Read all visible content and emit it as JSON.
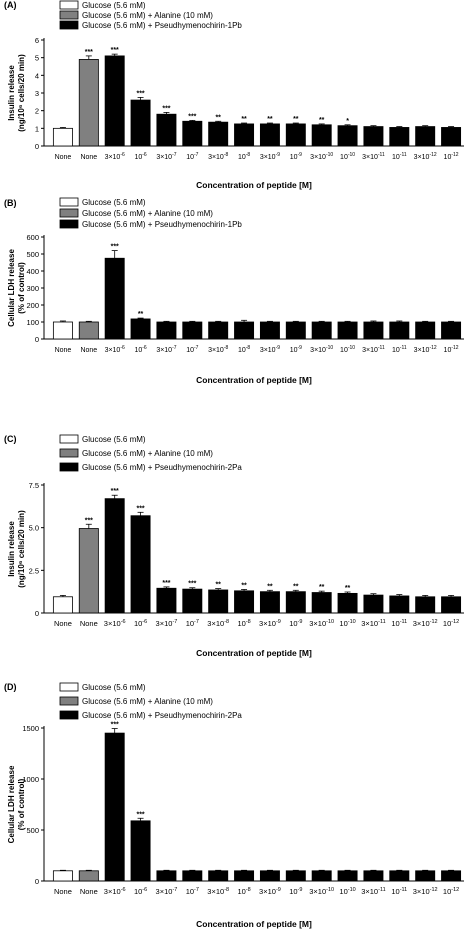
{
  "chart_data": [
    {
      "panel": "(A)",
      "type": "bar",
      "legend": [
        "Glucose (5.6 mM)",
        "Glucose (5.6 mM) + Alanine (10 mM)",
        "Glucose (5.6 mM) + Pseudhymenochirin-1Pb"
      ],
      "ylabel_line1": "Insulin release",
      "ylabel_line2": "(ng/10⁶ cells/20 min)",
      "xlabel": "Concentration of peptide [M]",
      "ylim": [
        0,
        6
      ],
      "yticks": [
        "0",
        "1",
        "2",
        "3",
        "4",
        "5",
        "6"
      ],
      "categories": [
        [
          "None"
        ],
        [
          "None"
        ],
        [
          "3×10",
          "-6"
        ],
        [
          "10",
          "-6"
        ],
        [
          "3×10",
          "-7"
        ],
        [
          "10",
          "-7"
        ],
        [
          "3×10",
          "-8"
        ],
        [
          "10",
          "-8"
        ],
        [
          "3×10",
          "-9"
        ],
        [
          "10",
          "-9"
        ],
        [
          "3×10",
          "-10"
        ],
        [
          "10",
          "-10"
        ],
        [
          "3×10",
          "-11"
        ],
        [
          "10",
          "-11"
        ],
        [
          "3×10",
          "-12"
        ],
        [
          "10",
          "-12"
        ]
      ],
      "values": [
        1.0,
        4.9,
        5.1,
        2.6,
        1.8,
        1.4,
        1.35,
        1.25,
        1.25,
        1.25,
        1.2,
        1.15,
        1.1,
        1.05,
        1.1,
        1.05
      ],
      "errors": [
        0.05,
        0.2,
        0.1,
        0.15,
        0.1,
        0.05,
        0.05,
        0.05,
        0.05,
        0.05,
        0.05,
        0.05,
        0.05,
        0.05,
        0.05,
        0.05
      ],
      "groups": [
        "white",
        "gray",
        "black",
        "black",
        "black",
        "black",
        "black",
        "black",
        "black",
        "black",
        "black",
        "black",
        "black",
        "black",
        "black",
        "black"
      ],
      "significance": [
        "",
        "***",
        "***",
        "***",
        "***",
        "***",
        "**",
        "**",
        "**",
        "**",
        "**",
        "*",
        "",
        "",
        "",
        ""
      ]
    },
    {
      "panel": "(B)",
      "type": "bar",
      "legend": [
        "Glucose (5.6 mM)",
        "Glucose (5.6 mM) + Alanine (10 mM)",
        "Glucose (5.6 mM) + Pseudhymenochirin-1Pb"
      ],
      "ylabel_line1": "Cellular LDH release",
      "ylabel_line2": "(% of control)",
      "xlabel": "Concentration of peptide [M]",
      "ylim": [
        0,
        600
      ],
      "yticks": [
        "0",
        "100",
        "200",
        "300",
        "400",
        "500",
        "600"
      ],
      "categories": [
        [
          "None"
        ],
        [
          "None"
        ],
        [
          "3×10",
          "-6"
        ],
        [
          "10",
          "-6"
        ],
        [
          "3×10",
          "-7"
        ],
        [
          "10",
          "-7"
        ],
        [
          "3×10",
          "-8"
        ],
        [
          "10",
          "-8"
        ],
        [
          "3×10",
          "-9"
        ],
        [
          "10",
          "-9"
        ],
        [
          "3×10",
          "-10"
        ],
        [
          "10",
          "-10"
        ],
        [
          "3×10",
          "-11"
        ],
        [
          "10",
          "-11"
        ],
        [
          "3×10",
          "-12"
        ],
        [
          "10",
          "-12"
        ]
      ],
      "values": [
        100,
        100,
        475,
        118,
        100,
        100,
        100,
        100,
        100,
        100,
        100,
        100,
        100,
        100,
        100,
        100
      ],
      "errors": [
        6,
        4,
        45,
        5,
        4,
        4,
        4,
        10,
        4,
        4,
        4,
        4,
        6,
        6,
        4,
        4
      ],
      "groups": [
        "white",
        "gray",
        "black",
        "black",
        "black",
        "black",
        "black",
        "black",
        "black",
        "black",
        "black",
        "black",
        "black",
        "black",
        "black",
        "black"
      ],
      "significance": [
        "",
        "",
        "***",
        "**",
        "",
        "",
        "",
        "",
        "",
        "",
        "",
        "",
        "",
        "",
        "",
        ""
      ]
    },
    {
      "panel": "(C)",
      "type": "bar",
      "legend": [
        "Glucose (5.6 mM)",
        "Glucose (5.6 mM) + Alanine (10 mM)",
        "Glucose (5.6 mM) + Pseudhymenochirin-2Pa"
      ],
      "ylabel_line1": "Insulin release",
      "ylabel_line2": "(ng/10⁶ cells/20 min)",
      "xlabel": "Concentration of peptide [M]",
      "ylim": [
        0,
        7.5
      ],
      "yticks": [
        "0",
        "2.5",
        "5.0",
        "7.5"
      ],
      "categories": [
        [
          "None"
        ],
        [
          "None"
        ],
        [
          "3×10",
          "-6"
        ],
        [
          "10",
          "-6"
        ],
        [
          "3×10",
          "-7"
        ],
        [
          "10",
          "-7"
        ],
        [
          "3×10",
          "-8"
        ],
        [
          "10",
          "-8"
        ],
        [
          "3×10",
          "-9"
        ],
        [
          "10",
          "-9"
        ],
        [
          "3×10",
          "-10"
        ],
        [
          "10",
          "-10"
        ],
        [
          "3×10",
          "-11"
        ],
        [
          "10",
          "-11"
        ],
        [
          "3×10",
          "-12"
        ],
        [
          "10",
          "-12"
        ]
      ],
      "values": [
        0.95,
        4.95,
        6.7,
        5.7,
        1.45,
        1.4,
        1.35,
        1.3,
        1.25,
        1.25,
        1.2,
        1.15,
        1.05,
        1.0,
        0.95,
        0.95
      ],
      "errors": [
        0.08,
        0.25,
        0.2,
        0.2,
        0.08,
        0.08,
        0.08,
        0.08,
        0.08,
        0.08,
        0.08,
        0.08,
        0.08,
        0.08,
        0.08,
        0.08
      ],
      "groups": [
        "white",
        "gray",
        "black",
        "black",
        "black",
        "black",
        "black",
        "black",
        "black",
        "black",
        "black",
        "black",
        "black",
        "black",
        "black",
        "black"
      ],
      "significance": [
        "",
        "***",
        "***",
        "***",
        "***",
        "***",
        "**",
        "**",
        "**",
        "**",
        "**",
        "**",
        "",
        "",
        "",
        ""
      ]
    },
    {
      "panel": "(D)",
      "type": "bar",
      "legend": [
        "Glucose (5.6 mM)",
        "Glucose (5.6 mM) + Alanine (10 mM)",
        "Glucose (5.6 mM) + Pseudhymenochirin-2Pa"
      ],
      "ylabel_line1": "Cellular LDH release",
      "ylabel_line2": "(% of control)",
      "xlabel": "Concentration of peptide [M]",
      "ylim": [
        0,
        1500
      ],
      "yticks": [
        "0",
        "500",
        "1000",
        "1500"
      ],
      "categories": [
        [
          "None"
        ],
        [
          "None"
        ],
        [
          "3×10",
          "-6"
        ],
        [
          "10",
          "-6"
        ],
        [
          "3×10",
          "-7"
        ],
        [
          "10",
          "-7"
        ],
        [
          "3×10",
          "-8"
        ],
        [
          "10",
          "-8"
        ],
        [
          "3×10",
          "-9"
        ],
        [
          "10",
          "-9"
        ],
        [
          "3×10",
          "-10"
        ],
        [
          "10",
          "-10"
        ],
        [
          "3×10",
          "-11"
        ],
        [
          "10",
          "-11"
        ],
        [
          "3×10",
          "-12"
        ],
        [
          "10",
          "-12"
        ]
      ],
      "values": [
        100,
        100,
        1450,
        590,
        100,
        100,
        100,
        100,
        100,
        100,
        100,
        100,
        100,
        100,
        100,
        100
      ],
      "errors": [
        5,
        5,
        45,
        25,
        5,
        5,
        5,
        5,
        5,
        5,
        5,
        5,
        5,
        5,
        5,
        5
      ],
      "groups": [
        "white",
        "gray",
        "black",
        "black",
        "black",
        "black",
        "black",
        "black",
        "black",
        "black",
        "black",
        "black",
        "black",
        "black",
        "black",
        "black"
      ],
      "significance": [
        "",
        "",
        "***",
        "***",
        "",
        "",
        "",
        "",
        "",
        "",
        "",
        "",
        "",
        "",
        "",
        ""
      ]
    }
  ],
  "colors": {
    "white": "#ffffff",
    "gray": "#808080",
    "black": "#000000",
    "axis": "#000000"
  }
}
